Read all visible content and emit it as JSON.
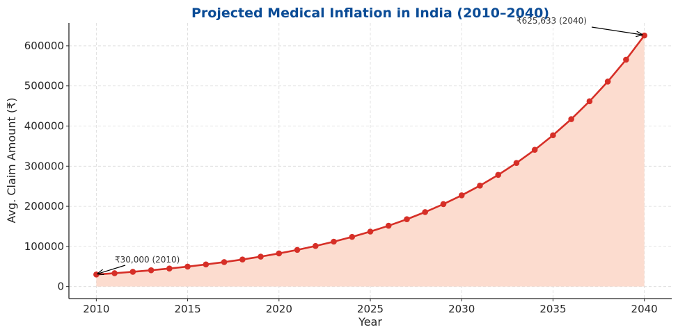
{
  "chart_data": {
    "type": "line",
    "title": "Projected Medical Inflation in India (2010–2040)",
    "xlabel": "Year",
    "ylabel": "Avg. Claim Amount (₹)",
    "xlim": [
      2008.5,
      2041.5
    ],
    "ylim": [
      -30000,
      657000
    ],
    "x_ticks": [
      2010,
      2015,
      2020,
      2025,
      2030,
      2035,
      2040
    ],
    "x_tick_labels": [
      "2010",
      "2015",
      "2020",
      "2025",
      "2030",
      "2035",
      "2040"
    ],
    "y_ticks": [
      0,
      100000,
      200000,
      300000,
      400000,
      500000,
      600000
    ],
    "y_tick_labels": [
      "0",
      "100000",
      "200000",
      "300000",
      "400000",
      "500000",
      "600000"
    ],
    "grid": true,
    "series": [
      {
        "name": "Avg. Claim Amount",
        "marker": "circle",
        "fill_under": true,
        "x": [
          2010,
          2011,
          2012,
          2013,
          2014,
          2015,
          2016,
          2017,
          2018,
          2019,
          2020,
          2021,
          2022,
          2023,
          2024,
          2025,
          2026,
          2027,
          2028,
          2029,
          2030,
          2031,
          2032,
          2033,
          2034,
          2035,
          2036,
          2037,
          2038,
          2039,
          2040
        ],
        "values": [
          30000,
          33197,
          36734,
          40648,
          44979,
          49772,
          55076,
          60944,
          67438,
          74624,
          82576,
          91375,
          101111,
          111885,
          123807,
          137000,
          151598,
          167752,
          185627,
          205407,
          227294,
          251514,
          278314,
          307970,
          340786,
          377099,
          417281,
          461745,
          510948,
          565393,
          625633
        ]
      }
    ],
    "annotations": [
      {
        "text": "₹30,000 (2010)",
        "point": [
          2010,
          30000
        ]
      },
      {
        "text": "₹625,633 (2040)",
        "point": [
          2040,
          625633
        ]
      }
    ],
    "colors": {
      "line": "#d62f27",
      "fill": "#fcdccf",
      "title": "#0b4c96",
      "grid": "#d9d9d9",
      "axis": "#262626"
    }
  }
}
